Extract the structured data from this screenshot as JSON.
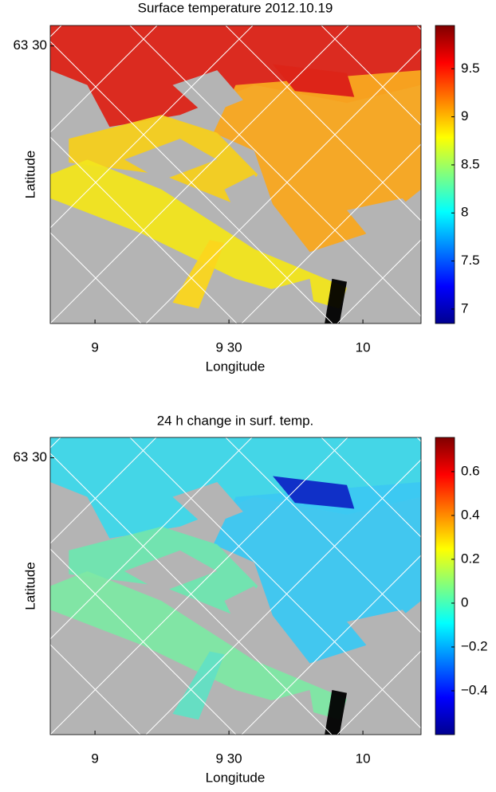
{
  "chart_data": [
    {
      "type": "map",
      "title": "Surface temperature 2012.10.19",
      "xlabel": "Longitude",
      "ylabel": "Latitude",
      "xlim": [
        8.833,
        10.217
      ],
      "xticks": [
        9,
        {
          "value": 9.5,
          "label": "9 30"
        },
        10
      ],
      "ylim": [
        63.038,
        63.534
      ],
      "yticks": [
        {
          "value": 63.5,
          "label": "63 30"
        }
      ],
      "clim": [
        6.85,
        9.95
      ],
      "cticks": [
        7,
        7.5,
        8,
        8.5,
        9,
        9.5
      ]
    },
    {
      "type": "map",
      "title": "24 h change in surf. temp.",
      "xlabel": "Longitude",
      "ylabel": "Latitude",
      "xlim": [
        8.833,
        10.217
      ],
      "xticks": [
        9,
        {
          "value": 9.5,
          "label": "9 30"
        },
        10
      ],
      "ylim": [
        63.038,
        63.534
      ],
      "yticks": [
        {
          "value": 63.5,
          "label": "63 30"
        }
      ],
      "clim": [
        -0.6,
        0.756
      ],
      "cticks": [
        {
          "value": -0.4,
          "label": "−0.4"
        },
        {
          "value": -0.2,
          "label": "−0.2"
        },
        0,
        0.2,
        0.4,
        0.6
      ]
    }
  ]
}
